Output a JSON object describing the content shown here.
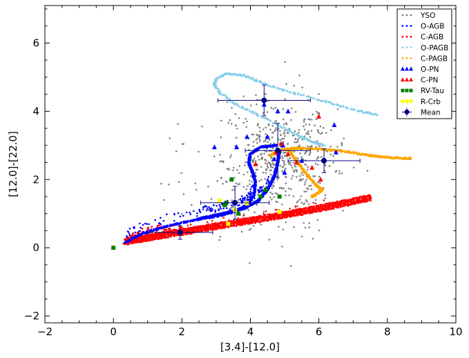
{
  "chart_data": {
    "type": "scatter",
    "xlabel": "[3.4]-[12.0]",
    "ylabel": "[12.0]-[22.0]",
    "xlim": [
      -2,
      10
    ],
    "ylim": [
      -2.2,
      7.1
    ],
    "xticks": [
      -2,
      0,
      2,
      4,
      6,
      8,
      10
    ],
    "yticks": [
      -2,
      0,
      2,
      4,
      6
    ],
    "xtick_labels": [
      "−2",
      "0",
      "2",
      "4",
      "6",
      "8",
      "10"
    ],
    "ytick_labels": [
      "−2",
      "0",
      "2",
      "4",
      "6"
    ],
    "legend_position": "top-right",
    "legend": [
      {
        "label": "YSO",
        "color": "#808080",
        "marker": "dot"
      },
      {
        "label": "O-AGB",
        "color": "#0000ff",
        "marker": "dot"
      },
      {
        "label": "C-AGB",
        "color": "#ff0000",
        "marker": "dot"
      },
      {
        "label": "O-PAGB",
        "color": "#87ceeb",
        "marker": "dot"
      },
      {
        "label": "C-PAGB",
        "color": "#ffa500",
        "marker": "dot"
      },
      {
        "label": "O-PN",
        "color": "#0000ff",
        "marker": "triangle"
      },
      {
        "label": "C-PN",
        "color": "#ff0000",
        "marker": "triangle"
      },
      {
        "label": "RV-Tau",
        "color": "#008000",
        "marker": "square"
      },
      {
        "label": "R-Crb",
        "color": "#ffff00",
        "marker": "square"
      },
      {
        "label": "Mean",
        "color": "#000080",
        "marker": "errorbar"
      }
    ],
    "series": [
      {
        "name": "O-PAGB",
        "color": "#87ceeb",
        "kind": "track",
        "points": [
          [
            7.7,
            3.9
          ],
          [
            7.2,
            4.0
          ],
          [
            6.5,
            4.2
          ],
          [
            5.8,
            4.4
          ],
          [
            5.0,
            4.6
          ],
          [
            4.3,
            4.85
          ],
          [
            3.8,
            5.05
          ],
          [
            3.3,
            5.1
          ],
          [
            3.0,
            4.95
          ],
          [
            2.95,
            4.8
          ],
          [
            3.1,
            4.55
          ],
          [
            3.5,
            4.25
          ],
          [
            4.1,
            3.95
          ],
          [
            4.8,
            3.6
          ],
          [
            5.4,
            3.3
          ],
          [
            5.8,
            3.1
          ],
          [
            6.15,
            3.0
          ]
        ]
      },
      {
        "name": "C-PAGB",
        "color": "#ffa500",
        "kind": "track",
        "points": [
          [
            4.6,
            2.7
          ],
          [
            4.8,
            2.85
          ],
          [
            5.3,
            2.92
          ],
          [
            6.0,
            2.9
          ],
          [
            6.8,
            2.82
          ],
          [
            7.5,
            2.7
          ],
          [
            8.1,
            2.64
          ],
          [
            8.7,
            2.62
          ]
        ]
      },
      {
        "name": "C-PAGB branch",
        "color": "#ffa500",
        "kind": "track",
        "points": [
          [
            5.1,
            2.9
          ],
          [
            5.3,
            2.6
          ],
          [
            5.6,
            2.2
          ],
          [
            5.9,
            1.85
          ],
          [
            6.1,
            1.7
          ],
          [
            5.9,
            1.55
          ],
          [
            5.8,
            1.5
          ]
        ]
      },
      {
        "name": "C-AGB",
        "color": "#ff0000",
        "kind": "band",
        "points": [
          [
            0.35,
            0.1
          ],
          [
            1.5,
            0.3
          ],
          [
            3.0,
            0.55
          ],
          [
            4.5,
            0.8
          ],
          [
            6.0,
            1.07
          ],
          [
            7.5,
            1.38
          ]
        ],
        "upper": [
          [
            0.35,
            0.1
          ],
          [
            0.6,
            0.35
          ],
          [
            1.0,
            0.55
          ],
          [
            1.5,
            0.6
          ],
          [
            2.0,
            0.55
          ],
          [
            2.3,
            0.5
          ]
        ]
      },
      {
        "name": "O-AGB",
        "color": "#0000ff",
        "kind": "track",
        "points": [
          [
            0.35,
            0.15
          ],
          [
            0.8,
            0.4
          ],
          [
            1.5,
            0.62
          ],
          [
            2.3,
            0.8
          ],
          [
            3.0,
            0.92
          ],
          [
            3.5,
            1.05
          ],
          [
            3.9,
            1.25
          ],
          [
            4.1,
            1.55
          ],
          [
            4.15,
            1.9
          ],
          [
            4.05,
            2.25
          ],
          [
            3.95,
            2.5
          ],
          [
            4.0,
            2.75
          ],
          [
            4.3,
            2.95
          ],
          [
            4.75,
            3.0
          ]
        ]
      },
      {
        "name": "O-AGB branch",
        "color": "#0000ff",
        "kind": "track",
        "points": [
          [
            2.5,
            0.85
          ],
          [
            3.2,
            1.0
          ],
          [
            3.8,
            1.15
          ],
          [
            4.2,
            1.35
          ],
          [
            4.5,
            1.7
          ],
          [
            4.7,
            2.1
          ],
          [
            4.8,
            2.5
          ],
          [
            4.85,
            2.85
          ]
        ]
      }
    ],
    "markers": {
      "O-PN": [
        [
          2.95,
          2.95
        ],
        [
          3.6,
          2.95
        ],
        [
          4.4,
          4.2
        ],
        [
          4.8,
          4.0
        ],
        [
          5.1,
          4.0
        ],
        [
          6.45,
          3.6
        ],
        [
          4.7,
          2.6
        ],
        [
          3.9,
          3.25
        ],
        [
          4.5,
          3.25
        ],
        [
          5.5,
          2.55
        ],
        [
          4.95,
          3.0
        ],
        [
          6.5,
          2.8
        ],
        [
          5.0,
          2.2
        ]
      ],
      "C-PN": [
        [
          4.15,
          2.45
        ],
        [
          4.9,
          3.05
        ],
        [
          5.1,
          2.75
        ],
        [
          5.8,
          2.35
        ],
        [
          6.05,
          2.0
        ],
        [
          6.0,
          3.85
        ],
        [
          4.75,
          2.8
        ],
        [
          5.35,
          2.5
        ]
      ],
      "RV-Tau": [
        [
          0.0,
          0.0
        ],
        [
          3.45,
          2.0
        ],
        [
          4.85,
          1.5
        ],
        [
          3.3,
          1.32
        ],
        [
          3.65,
          1.0
        ],
        [
          4.45,
          1.7
        ],
        [
          3.25,
          1.25
        ],
        [
          4.3,
          1.5
        ]
      ],
      "R-Crb": [
        [
          3.1,
          1.38
        ],
        [
          3.55,
          1.1
        ],
        [
          3.9,
          1.3
        ],
        [
          3.35,
          0.7
        ],
        [
          4.85,
          1.05
        ]
      ]
    },
    "means": [
      {
        "x": 1.95,
        "y": 0.45,
        "xerr": 0.95,
        "yerr": 0.2
      },
      {
        "x": 3.55,
        "y": 1.32,
        "xerr": 1.0,
        "yerr": 0.48
      },
      {
        "x": 4.4,
        "y": 4.32,
        "xerr": 1.35,
        "yerr": 0.45
      },
      {
        "x": 4.8,
        "y": 2.85,
        "xerr": 0.95,
        "yerr": 0.8
      },
      {
        "x": 6.15,
        "y": 2.55,
        "xerr": 1.05,
        "yerr": 0.35
      }
    ],
    "yso_cloud": {
      "center": [
        4.8,
        2.6
      ],
      "spread": [
        0.8,
        0.9
      ],
      "count": 600
    }
  }
}
